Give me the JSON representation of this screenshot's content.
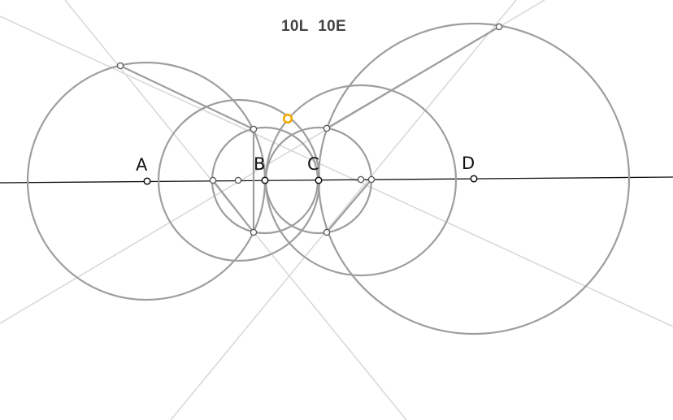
{
  "score": {
    "lines": "10L",
    "elements": "10E"
  },
  "points": {
    "A": {
      "label": "A"
    },
    "B": {
      "label": "B"
    },
    "C": {
      "label": "C"
    },
    "D": {
      "label": "D"
    }
  },
  "colors": {
    "background": "#ffffff",
    "circle": "#9e9e9e",
    "ray": "#d9d9d9",
    "baseline": "#111111",
    "point_fill": "#ffffff",
    "point_stroke": "#555555",
    "target": "#f2a900"
  }
}
